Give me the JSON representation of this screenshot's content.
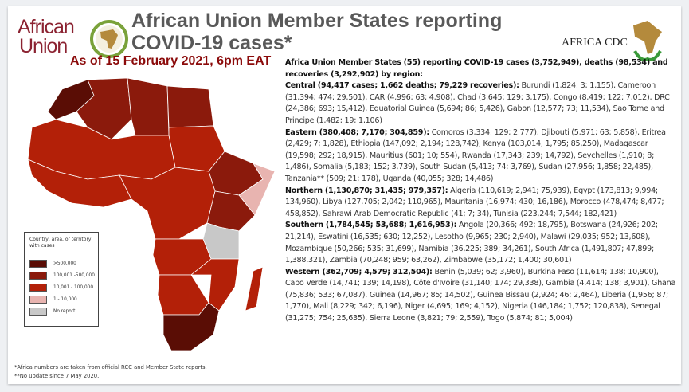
{
  "header": {
    "logo_left": "African Union",
    "logo_left_line1": "African",
    "logo_left_line2": "Union",
    "title_line1": "African Union Member States reporting",
    "title_line2": "COVID-19 cases*",
    "logo_right": "AFRICA CDC",
    "as_of": "As of 15 February 2021, 6pm EAT"
  },
  "summary": {
    "intro": "Africa Union Member States (55) reporting COVID-19 cases (3,752,949), deaths (98,534) and recoveries (3,292,902) by region:",
    "regions": [
      {
        "heading": "Central (94,417 cases; 1,662 deaths; 79,229 recoveries):",
        "countries": " Burundi (1,824; 3; 1,155), Cameroon (31,394; 474; 29,501), CAR (4,996; 63; 4,908), Chad (3,645; 129; 3,175), Congo (8,419; 122; 7,012), DRC (24,386; 693; 15,412), Equatorial Guinea (5,694; 86; 5,426), Gabon (12,577; 73; 11,534), Sao Tome and Principe (1,482; 19; 1,106)"
      },
      {
        "heading": "Eastern (380,408; 7,170; 304,859):",
        "countries": " Comoros (3,334; 129; 2,777), Djibouti (5,971; 63; 5,858), Eritrea (2,429; 7; 1,828), Ethiopia (147,092; 2,194; 128,742), Kenya (103,014; 1,795; 85,250), Madagascar (19,598; 292; 18,915), Mauritius (601; 10; 554), Rwanda (17,343; 239; 14,792), Seychelles (1,910; 8; 1,486), Somalia (5,183; 152; 3,739), South Sudan (5,413; 74; 3,769), Sudan (27,956; 1,858; 22,485), Tanzania** (509; 21; 178), Uganda (40,055; 328; 14,486)"
      },
      {
        "heading": "Northern (1,130,870; 31,435; 979,357):",
        "countries": " Algeria (110,619; 2,941; 75,939), Egypt (173,813; 9,994; 134,960), Libya (127,705; 2,042; 110,965), Mauritania (16,974; 430; 16,186), Morocco (478,474; 8,477; 458,852), Sahrawi Arab Democratic Republic (41; 7; 34), Tunisia (223,244; 7,544; 182,421)"
      },
      {
        "heading": "Southern (1,784,545; 53,688; 1,616,953):",
        "countries": " Angola (20,366; 492; 18,795), Botswana (24,926; 202; 21,214), Eswatini (16,535; 630; 12,252), Lesotho (9,965; 230; 2,940), Malawi (29,035; 952; 13,608), Mozambique (50,266; 535; 31,699), Namibia (36,225; 389; 34,261), South Africa (1,491,807; 47,899; 1,388,321), Zambia (70,248; 959; 63,262), Zimbabwe (35,172; 1,400; 30,601)"
      },
      {
        "heading": "Western (362,709; 4,579; 312,504):",
        "countries": " Benin (5,039; 62; 3,960), Burkina Faso (11,614; 138; 10,900), Cabo Verde (14,741; 139; 14,198), Côte d'Ivoire (31,140; 174; 29,338), Gambia (4,414; 138; 3,901), Ghana (75,836; 533; 67,087), Guinea (14,967; 85; 14,502), Guinea Bissau (2,924; 46; 2,464), Liberia (1,956; 87; 1,770), Mali (8,229; 342; 6,196), Niger (4,695; 169; 4,152), Nigeria (146,184; 1,752; 120,838), Senegal (31,275; 754; 25,635), Sierra Leone (3,821; 79; 2,559), Togo (5,874; 81; 5,004)"
      }
    ]
  },
  "legend": {
    "title": "Country, area, or territory with cases",
    "items": [
      {
        "label": ">500,000",
        "color": "#5a0d05"
      },
      {
        "label": "100,001 -500,000",
        "color": "#8b1a0c"
      },
      {
        "label": "10,001 - 100,000",
        "color": "#b32008"
      },
      {
        "label": "1 - 10,000",
        "color": "#e8b4b0"
      },
      {
        "label": "No report",
        "color": "#c8c8c8"
      }
    ]
  },
  "footnotes": [
    "*Africa numbers are taken from official RCC and Member State reports.",
    "**No update since 7 May 2020."
  ]
}
